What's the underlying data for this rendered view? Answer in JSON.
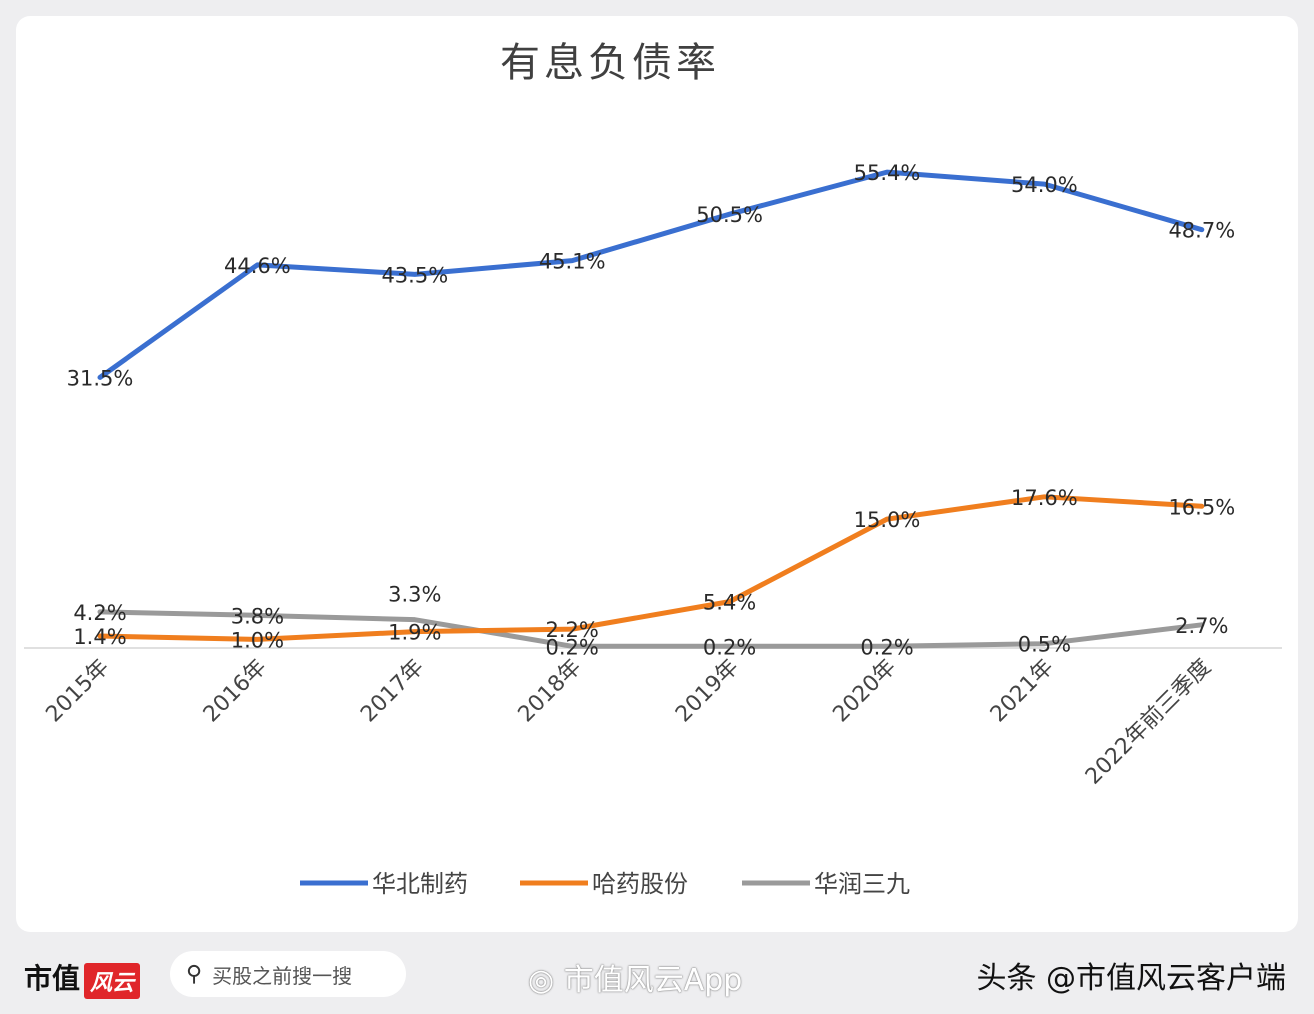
{
  "chart_data": {
    "type": "line",
    "title": "有息负债率",
    "xlabel": "",
    "ylabel": "",
    "categories": [
      "2015年",
      "2016年",
      "2017年",
      "2018年",
      "2019年",
      "2020年",
      "2021年",
      "2022年前三季度"
    ],
    "ylim": [
      0,
      60
    ],
    "grid": false,
    "legend_position": "bottom",
    "unit": "%",
    "series": [
      {
        "name": "华北制药",
        "color": "#3a6fd0",
        "values": [
          31.5,
          44.6,
          43.5,
          45.1,
          50.5,
          55.4,
          54.0,
          48.7
        ],
        "labels": [
          "31.5%",
          "44.6%",
          "43.5%",
          "45.1%",
          "50.5%",
          "55.4%",
          "54.0%",
          "48.7%"
        ]
      },
      {
        "name": "哈药股份",
        "color": "#f07e1e",
        "values": [
          1.4,
          1.0,
          1.9,
          2.2,
          5.4,
          15.0,
          17.6,
          16.5
        ],
        "labels": [
          "1.4%",
          "1.0%",
          "1.9%",
          "2.2%",
          "5.4%",
          "15.0%",
          "17.6%",
          "16.5%"
        ]
      },
      {
        "name": "华润三九",
        "color": "#9a9a9a",
        "values": [
          4.2,
          3.8,
          3.3,
          0.2,
          0.2,
          0.2,
          0.5,
          2.7
        ],
        "labels": [
          "4.2%",
          "3.8%",
          "3.3%",
          "0.2%",
          "0.2%",
          "0.2%",
          "0.5%",
          "2.7%"
        ]
      }
    ]
  },
  "footer": {
    "logo_text": "市值",
    "logo_badge": "风云",
    "search_placeholder": "买股之前搜一搜",
    "weibo_watermark": "市值风云App",
    "toutiao_credit": "头条 @市值风云客户端"
  }
}
